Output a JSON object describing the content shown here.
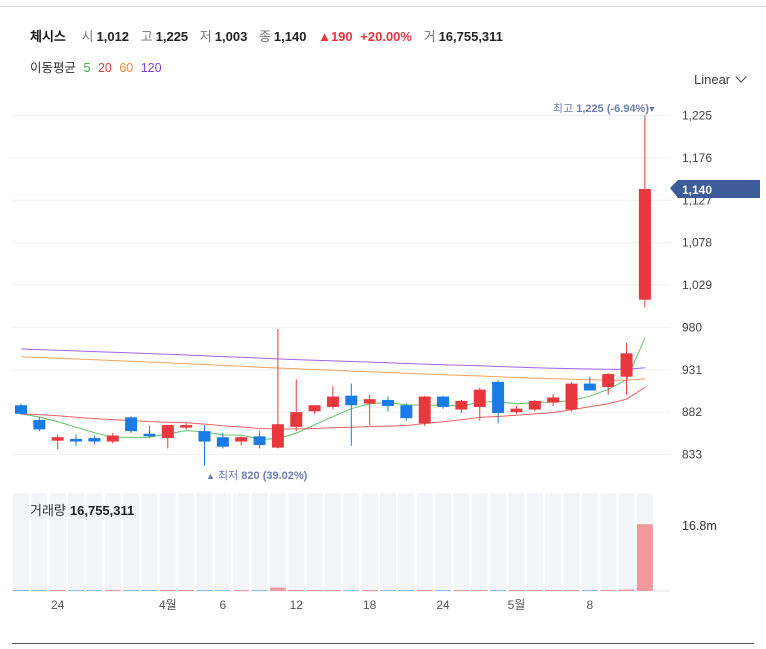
{
  "header": {
    "name": "체시스",
    "open_label": "시",
    "open": "1,012",
    "high_label": "고",
    "high": "1,225",
    "low_label": "저",
    "low": "1,003",
    "close_label": "종",
    "close": "1,140",
    "change_arrow": "▲",
    "change": "190",
    "change_pct": "+20.00%",
    "volume_label": "거",
    "volume": "16,755,311"
  },
  "ma_legend": {
    "title": "이동평균",
    "periods": [
      {
        "label": "5",
        "color": "#3cb043"
      },
      {
        "label": "20",
        "color": "#e8383d"
      },
      {
        "label": "60",
        "color": "#f08c3a"
      },
      {
        "label": "120",
        "color": "#8a3ee8"
      }
    ]
  },
  "scale_mode": "Linear",
  "price_axis": {
    "ticks": [
      "1,225",
      "1,176",
      "1,127",
      "1,078",
      "1,029",
      "980",
      "931",
      "882",
      "833"
    ],
    "tick_values": [
      1225,
      1176,
      1127,
      1078,
      1029,
      980,
      931,
      882,
      833
    ]
  },
  "current_price_badge": "1,140",
  "annotations": {
    "high_prefix": "최고",
    "high_text": "1,225 (-6.94%)",
    "high_marker": "▼",
    "low_marker": "▲",
    "low_prefix": "최저",
    "low_text": "820 (39.02%)"
  },
  "volume_panel": {
    "title": "거래량",
    "value": "16,755,311",
    "axis_label": "16.8m"
  },
  "x_axis_labels": [
    "24",
    "4월",
    "6",
    "12",
    "18",
    "24",
    "5월",
    "8"
  ],
  "colors": {
    "up": "#e8383d",
    "down": "#1a7be6",
    "badge": "#3d5a99"
  },
  "chart_data": {
    "type": "candlestick",
    "y_range": [
      814,
      1240
    ],
    "volume_axis_max": 16.8,
    "candles": [
      {
        "o": 890,
        "h": 892,
        "l": 879,
        "c": 880,
        "v": 0.02
      },
      {
        "o": 873,
        "h": 876,
        "l": 860,
        "c": 862,
        "v": 0.02
      },
      {
        "o": 849,
        "h": 856,
        "l": 839,
        "c": 853,
        "v": 0.02
      },
      {
        "o": 851,
        "h": 856,
        "l": 843,
        "c": 848,
        "v": 0.02
      },
      {
        "o": 852,
        "h": 855,
        "l": 845,
        "c": 848,
        "v": 0.02
      },
      {
        "o": 848,
        "h": 858,
        "l": 846,
        "c": 855,
        "v": 0.02
      },
      {
        "o": 876,
        "h": 877,
        "l": 858,
        "c": 860,
        "v": 0.02
      },
      {
        "o": 857,
        "h": 866,
        "l": 852,
        "c": 854,
        "v": 0.02
      },
      {
        "o": 852,
        "h": 866,
        "l": 840,
        "c": 867,
        "v": 0.02
      },
      {
        "o": 864,
        "h": 869,
        "l": 862,
        "c": 867,
        "v": 0.02
      },
      {
        "o": 860,
        "h": 867,
        "l": 820,
        "c": 848,
        "v": 0.15
      },
      {
        "o": 853,
        "h": 858,
        "l": 840,
        "c": 842,
        "v": 0.02
      },
      {
        "o": 848,
        "h": 854,
        "l": 844,
        "c": 853,
        "v": 0.02
      },
      {
        "o": 854,
        "h": 860,
        "l": 840,
        "c": 844,
        "v": 0.02
      },
      {
        "o": 841,
        "h": 978,
        "l": 840,
        "c": 868,
        "v": 0.85
      },
      {
        "o": 865,
        "h": 920,
        "l": 860,
        "c": 882,
        "v": 0.15
      },
      {
        "o": 883,
        "h": 890,
        "l": 880,
        "c": 890,
        "v": 0.04
      },
      {
        "o": 888,
        "h": 912,
        "l": 885,
        "c": 900,
        "v": 0.04
      },
      {
        "o": 901,
        "h": 915,
        "l": 843,
        "c": 890,
        "v": 0.12
      },
      {
        "o": 892,
        "h": 902,
        "l": 867,
        "c": 897,
        "v": 0.04
      },
      {
        "o": 896,
        "h": 900,
        "l": 883,
        "c": 889,
        "v": 0.03
      },
      {
        "o": 890,
        "h": 892,
        "l": 872,
        "c": 875,
        "v": 0.04
      },
      {
        "o": 869,
        "h": 901,
        "l": 866,
        "c": 900,
        "v": 0.15
      },
      {
        "o": 900,
        "h": 901,
        "l": 886,
        "c": 888,
        "v": 0.05
      },
      {
        "o": 885,
        "h": 896,
        "l": 881,
        "c": 895,
        "v": 0.04
      },
      {
        "o": 888,
        "h": 910,
        "l": 872,
        "c": 908,
        "v": 0.15
      },
      {
        "o": 917,
        "h": 919,
        "l": 869,
        "c": 881,
        "v": 0.2
      },
      {
        "o": 882,
        "h": 889,
        "l": 880,
        "c": 886,
        "v": 0.04
      },
      {
        "o": 885,
        "h": 896,
        "l": 883,
        "c": 895,
        "v": 0.04
      },
      {
        "o": 893,
        "h": 903,
        "l": 889,
        "c": 899,
        "v": 0.04
      },
      {
        "o": 885,
        "h": 917,
        "l": 883,
        "c": 915,
        "v": 0.25
      },
      {
        "o": 915,
        "h": 923,
        "l": 907,
        "c": 907,
        "v": 0.06
      },
      {
        "o": 911,
        "h": 927,
        "l": 902,
        "c": 926,
        "v": 0.15
      },
      {
        "o": 923,
        "h": 962,
        "l": 902,
        "c": 950,
        "v": 0.35
      },
      {
        "o": 1012,
        "h": 1225,
        "l": 1003,
        "c": 1140,
        "v": 16.76
      }
    ]
  }
}
